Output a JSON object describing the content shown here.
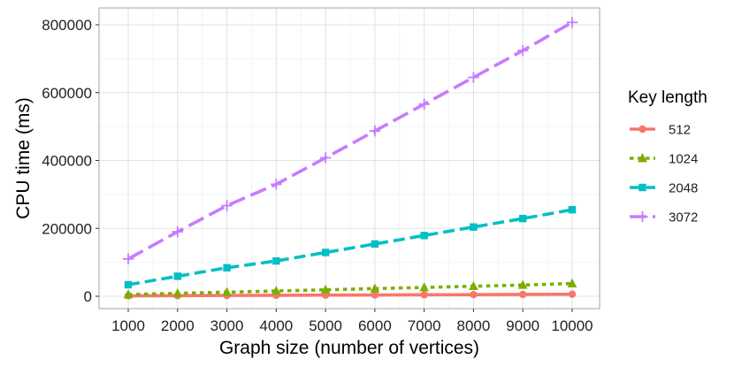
{
  "chart_data": {
    "type": "line",
    "title": "",
    "xlabel": "Graph size (number of vertices)",
    "ylabel": "CPU time (ms)",
    "x": [
      1000,
      2000,
      3000,
      4000,
      5000,
      6000,
      7000,
      8000,
      9000,
      10000
    ],
    "x_ticks": [
      "1000",
      "2000",
      "3000",
      "4000",
      "5000",
      "6000",
      "7000",
      "8000",
      "9000",
      "10000"
    ],
    "y_ticks": [
      "0",
      "200000",
      "400000",
      "600000",
      "800000"
    ],
    "xlim": [
      1000,
      10000
    ],
    "ylim": [
      0,
      800000
    ],
    "grid": true,
    "legend": {
      "title": "Key length",
      "position": "right"
    },
    "series": [
      {
        "name": "512",
        "color": "#F8766D",
        "marker": "circle",
        "dash": "solid",
        "values": [
          1200,
          1700,
          2300,
          2800,
          3300,
          3800,
          4300,
          4800,
          5300,
          6000
        ]
      },
      {
        "name": "1024",
        "color": "#7CAE00",
        "marker": "triangle",
        "dash": "dotted",
        "values": [
          5000,
          8500,
          12000,
          15500,
          19000,
          22500,
          26000,
          29500,
          33000,
          37500
        ]
      },
      {
        "name": "2048",
        "color": "#00BFC4",
        "marker": "square",
        "dash": "dashed",
        "values": [
          34000,
          59000,
          84000,
          104000,
          129000,
          154000,
          179000,
          204000,
          229000,
          255000
        ]
      },
      {
        "name": "3072",
        "color": "#C77CFF",
        "marker": "plus",
        "dash": "longdash",
        "values": [
          110000,
          190000,
          267000,
          330000,
          408000,
          487000,
          566000,
          645000,
          724000,
          807000
        ]
      }
    ]
  }
}
